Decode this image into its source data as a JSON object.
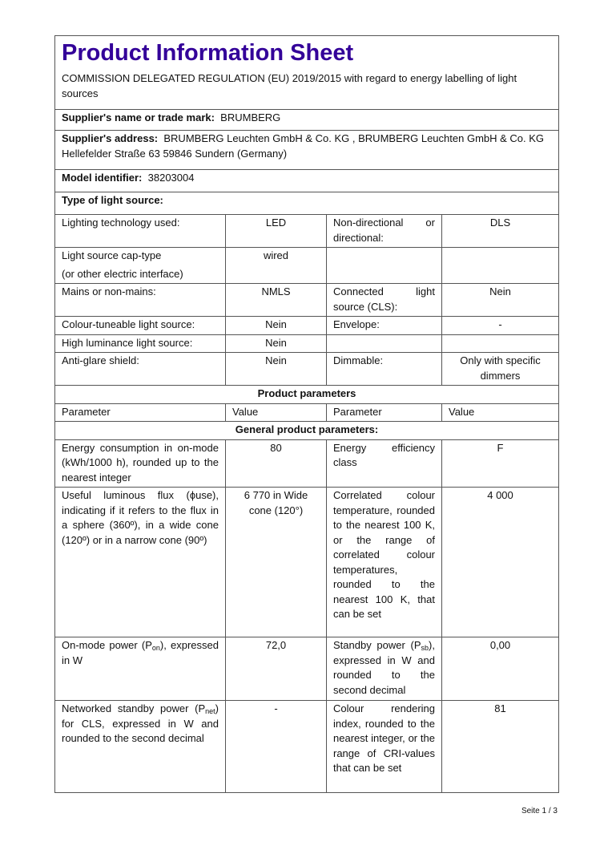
{
  "header": {
    "title": "Product Information Sheet",
    "regulation": "COMMISSION DELEGATED REGULATION (EU) 2019/2015 with regard to energy labelling of light sources",
    "title_color": "#330099"
  },
  "supplier_name": {
    "label": "Supplier's name or trade mark:",
    "value": "BRUMBERG"
  },
  "supplier_address": {
    "label": "Supplier's address:",
    "value": "BRUMBERG Leuchten GmbH & Co. KG , BRUMBERG Leuchten GmbH & Co. KG Hellefelder Straße 63 59846 Sundern (Germany)"
  },
  "model": {
    "label": "Model identifier:",
    "value": "38203004"
  },
  "type_heading": "Type of light source:",
  "type_rows": [
    {
      "l1": "Lighting technology used:",
      "v1": "LED",
      "l2": "Non-directional or directional:",
      "v2": "DLS"
    },
    {
      "l1": "Light source cap-type",
      "l1b": "(or other electric interface)",
      "v1": "wired",
      "l2": "",
      "v2": ""
    },
    {
      "l1": "Mains or non-mains:",
      "v1": "NMLS",
      "l2": "Connected light source (CLS):",
      "v2": "Nein"
    },
    {
      "l1": "Colour-tuneable light source:",
      "v1": "Nein",
      "l2": "Envelope:",
      "v2": "-"
    },
    {
      "l1": "High luminance light source:",
      "v1": "Nein",
      "l2": "",
      "v2": ""
    },
    {
      "l1": "Anti-glare shield:",
      "v1": "Nein",
      "l2": "Dimmable:",
      "v2": "Only with specific dimmers"
    }
  ],
  "product_parameters": {
    "heading": "Product parameters",
    "columns": [
      "Parameter",
      "Value",
      "Parameter",
      "Value"
    ],
    "general_heading": "General product parameters:",
    "rows": [
      {
        "l1": "Energy consumption in on-mode (kWh/1000 h), rounded up to the nearest integer",
        "v1": "80",
        "l2": "Energy efficiency class",
        "v2": "F"
      },
      {
        "l1": "Useful luminous flux (ϕuse), indicating if it refers to the flux in a sphere (360º), in a wide cone (120º) or in a narrow cone (90º)",
        "v1": "6 770 in Wide cone (120°)",
        "l2": "Correlated colour temperature, rounded to the nearest 100 K, or the range of correlated colour temperatures, rounded to the nearest 100 K, that can be set",
        "v2": "4 000"
      },
      {
        "l1_pre": "On-mode power (P",
        "l1_sub": "on",
        "l1_post": "), expressed in W",
        "v1": "72,0",
        "l2_pre": "Standby power (P",
        "l2_sub": "sb",
        "l2_post": "), expressed in W and rounded to the second decimal",
        "v2": "0,00"
      },
      {
        "l1_pre": "Networked standby power (P",
        "l1_sub": "net",
        "l1_post": ") for CLS, expressed in W and rounded to the second decimal",
        "v1": "-",
        "l2": "Colour rendering index, rounded to the nearest integer, or the range of CRI-values that can be set",
        "v2": "81"
      }
    ]
  },
  "footer": {
    "label": "Seite",
    "page": "1 / 3"
  }
}
